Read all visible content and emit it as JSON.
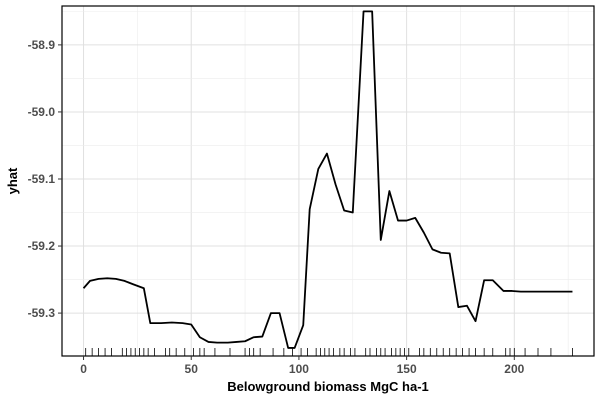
{
  "chart_data": {
    "type": "line",
    "title": "",
    "xlabel": "Belowground biomass MgC ha-1",
    "ylabel": "yhat",
    "xlim": [
      -10,
      237
    ],
    "ylim": [
      -59.364,
      -58.842
    ],
    "grid": true,
    "x_ticks": [
      0,
      50,
      100,
      150,
      200
    ],
    "y_ticks": [
      -59.3,
      -59.2,
      -59.1,
      -59.0,
      -58.9
    ],
    "x_tick_labels": [
      "0",
      "50",
      "100",
      "150",
      "200"
    ],
    "y_tick_labels": [
      "-59.3",
      "-59.2",
      "-59.1",
      "-59.0",
      "-58.9"
    ],
    "series": [
      {
        "name": "yhat",
        "color": "#000000",
        "x": [
          0,
          3,
          7,
          11,
          15,
          19,
          23,
          28,
          31,
          36,
          41,
          46,
          50,
          54,
          58,
          62,
          67,
          71,
          75,
          79,
          83,
          87,
          91,
          95,
          98,
          102,
          105,
          109,
          113,
          117,
          121,
          125,
          130,
          134,
          138,
          142,
          146,
          150,
          154,
          158,
          162,
          166,
          170,
          174,
          178,
          182,
          186,
          190,
          195,
          199,
          203,
          207,
          211,
          215,
          219,
          223,
          227
        ],
        "values": [
          -59.263,
          -59.252,
          -59.249,
          -59.248,
          -59.249,
          -59.252,
          -59.257,
          -59.263,
          -59.315,
          -59.315,
          -59.314,
          -59.315,
          -59.317,
          -59.336,
          -59.343,
          -59.344,
          -59.344,
          -59.343,
          -59.342,
          -59.336,
          -59.335,
          -59.3,
          -59.3,
          -59.352,
          -59.352,
          -59.318,
          -59.145,
          -59.085,
          -59.062,
          -59.108,
          -59.147,
          -59.15,
          -58.85,
          -58.85,
          -59.191,
          -59.118,
          -59.162,
          -59.162,
          -59.158,
          -59.18,
          -59.205,
          -59.21,
          -59.211,
          -59.291,
          -59.289,
          -59.312,
          -59.251,
          -59.251,
          -59.267,
          -59.267,
          -59.268,
          -59.268,
          -59.268,
          -59.268,
          -59.268,
          -59.268,
          -59.268
        ]
      }
    ],
    "rug_x": [
      1,
      4,
      7,
      10,
      13,
      18,
      20,
      22,
      24,
      26,
      28,
      30,
      33,
      38,
      40,
      43,
      47,
      51,
      54,
      56,
      61,
      68,
      75,
      77,
      79,
      82,
      88,
      93,
      97,
      101,
      104,
      108,
      110,
      112,
      114,
      116,
      119,
      121,
      124,
      126,
      131,
      133,
      136,
      138,
      140,
      143,
      145,
      147,
      149,
      151,
      156,
      158,
      161,
      164,
      167,
      170,
      173,
      176,
      179,
      182,
      186,
      190,
      196,
      198,
      200,
      205,
      211,
      217,
      227
    ]
  }
}
